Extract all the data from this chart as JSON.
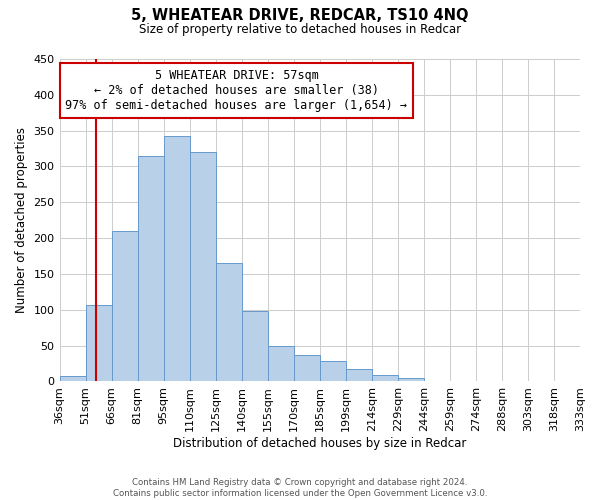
{
  "title": "5, WHEATEAR DRIVE, REDCAR, TS10 4NQ",
  "subtitle": "Size of property relative to detached houses in Redcar",
  "xlabel": "Distribution of detached houses by size in Redcar",
  "ylabel": "Number of detached properties",
  "bar_values": [
    7,
    107,
    210,
    315,
    343,
    320,
    165,
    99,
    50,
    37,
    29,
    18,
    9,
    5,
    1,
    1,
    0,
    0,
    0,
    0
  ],
  "bin_labels": [
    "36sqm",
    "51sqm",
    "66sqm",
    "81sqm",
    "95sqm",
    "110sqm",
    "125sqm",
    "140sqm",
    "155sqm",
    "170sqm",
    "185sqm",
    "199sqm",
    "214sqm",
    "229sqm",
    "244sqm",
    "259sqm",
    "274sqm",
    "288sqm",
    "303sqm",
    "318sqm",
    "333sqm"
  ],
  "bar_color": "#b8d0e8",
  "bar_edge_color": "#6699cc",
  "ylim": [
    0,
    450
  ],
  "yticks": [
    0,
    50,
    100,
    150,
    200,
    250,
    300,
    350,
    400,
    450
  ],
  "marker_line_color": "#cc0000",
  "annotation_title": "5 WHEATEAR DRIVE: 57sqm",
  "annotation_line1": "← 2% of detached houses are smaller (38)",
  "annotation_line2": "97% of semi-detached houses are larger (1,654) →",
  "footer_line1": "Contains HM Land Registry data © Crown copyright and database right 2024.",
  "footer_line2": "Contains public sector information licensed under the Open Government Licence v3.0.",
  "bg_color": "#ffffff",
  "grid_color": "#cccccc"
}
